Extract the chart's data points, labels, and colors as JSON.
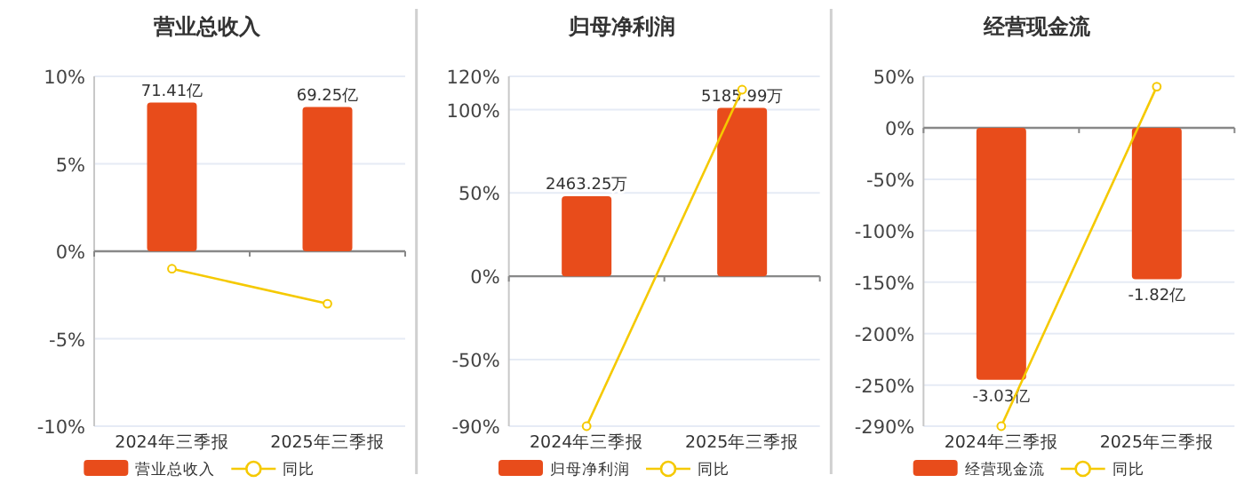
{
  "chart_data": [
    {
      "type": "bar",
      "title": "营业总收入",
      "categories": [
        "2024年三季报",
        "2025年三季报"
      ],
      "series": [
        {
          "name": "营业总收入",
          "type": "bar",
          "axis": "y2",
          "color": "#e84c1b",
          "values": [
            71.41,
            69.25
          ],
          "value_labels": [
            "71.41亿",
            "69.25亿"
          ]
        },
        {
          "name": "同比",
          "type": "line",
          "color": "#f5c900",
          "marker": "circle",
          "values": [
            -1.0,
            -3.0
          ]
        }
      ],
      "ylim": [
        -10,
        10
      ],
      "yticks": [
        {
          "value": -10,
          "label": "-10%"
        },
        {
          "value": -5,
          "label": "-5%"
        },
        {
          "value": 0,
          "label": "0%"
        },
        {
          "value": 5,
          "label": "5%"
        },
        {
          "value": 10,
          "label": "10%"
        }
      ],
      "y2lim": [
        -84,
        84
      ],
      "grid": "y",
      "legend": "bottom"
    },
    {
      "type": "bar",
      "title": "归母净利润",
      "categories": [
        "2024年三季报",
        "2025年三季报"
      ],
      "series": [
        {
          "name": "归母净利润",
          "type": "bar",
          "axis": "y2",
          "color": "#e84c1b",
          "values": [
            2463.25,
            5185.99
          ],
          "value_labels": [
            "2463.25万",
            "5185.99万"
          ]
        },
        {
          "name": "同比",
          "type": "line",
          "color": "#f5c900",
          "marker": "circle",
          "values": [
            -90,
            112
          ]
        }
      ],
      "ylim": [
        -90,
        120
      ],
      "yticks": [
        {
          "value": -90,
          "label": "-90%"
        },
        {
          "value": -50,
          "label": "-50%"
        },
        {
          "value": 0,
          "label": "0%"
        },
        {
          "value": 50,
          "label": "50%"
        },
        {
          "value": 100,
          "label": "100%"
        },
        {
          "value": 120,
          "label": "120%"
        }
      ],
      "y2lim": [
        -4620,
        6160
      ],
      "grid": "y",
      "legend": "bottom"
    },
    {
      "type": "bar",
      "title": "经营现金流",
      "categories": [
        "2024年三季报",
        "2025年三季报"
      ],
      "series": [
        {
          "name": "经营现金流",
          "type": "bar",
          "axis": "y2",
          "color": "#e84c1b",
          "values": [
            -3.03,
            -1.82
          ],
          "value_labels": [
            "-3.03亿",
            "-1.82亿"
          ]
        },
        {
          "name": "同比",
          "type": "line",
          "color": "#f5c900",
          "marker": "circle",
          "values": [
            -290,
            40
          ]
        }
      ],
      "ylim": [
        -290,
        50
      ],
      "yticks": [
        {
          "value": -290,
          "label": "-290%"
        },
        {
          "value": -250,
          "label": "-250%"
        },
        {
          "value": -200,
          "label": "-200%"
        },
        {
          "value": -150,
          "label": "-150%"
        },
        {
          "value": -100,
          "label": "-100%"
        },
        {
          "value": -50,
          "label": "-50%"
        },
        {
          "value": 0,
          "label": "0%"
        },
        {
          "value": 50,
          "label": "50%"
        }
      ],
      "y2lim": [
        -3.587,
        0.618
      ],
      "grid": "y",
      "legend": "bottom"
    }
  ]
}
